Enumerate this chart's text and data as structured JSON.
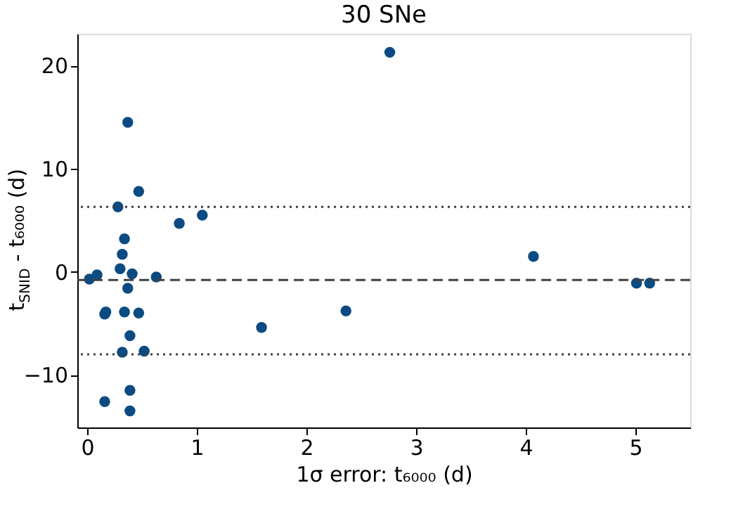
{
  "chart_data": {
    "type": "scatter",
    "title": "30 SNe",
    "xlabel": "1σ error: t₆₀₀₀ (d)",
    "ylabel": "t$_{SNID}$ - t₆₀₀₀ (d)",
    "x": [
      0.37,
      0.47,
      0.28,
      0.84,
      1.05,
      0.34,
      0.32,
      0.3,
      0.41,
      0.63,
      0.02,
      0.09,
      0.37,
      0.16,
      0.17,
      0.34,
      0.47,
      1.59,
      0.39,
      0.32,
      0.52,
      0.39,
      0.16,
      0.39,
      2.76,
      4.07,
      2.36,
      5.01,
      5.13
    ],
    "series": [
      {
        "color": "#0b4b82",
        "values": [
          14.5,
          7.8,
          6.3,
          4.7,
          5.5,
          3.2,
          1.7,
          0.3,
          -0.2,
          -0.5,
          -0.7,
          -0.3,
          -1.6,
          -4.1,
          -3.9,
          -3.9,
          -4.0,
          -5.4,
          -6.2,
          -7.8,
          -7.7,
          -11.5,
          -12.6,
          -13.5,
          21.3,
          1.5,
          -3.8,
          -1.1,
          -1.1
        ]
      }
    ],
    "xlim": [
      -0.09,
      5.5
    ],
    "ylim": [
      -15.1,
      23.1
    ],
    "xticks": [
      0,
      1,
      2,
      3,
      4,
      5
    ],
    "yticks": [
      -10,
      0,
      10,
      20
    ],
    "ref_lines": [
      {
        "axis": "y",
        "value": -0.8,
        "color": "#404040",
        "line_style": "dashed"
      },
      {
        "axis": "y",
        "value": 6.3,
        "color": "#404040",
        "line_style": "dotted"
      },
      {
        "axis": "y",
        "value": -8.0,
        "color": "#404040",
        "line_style": "dotted"
      }
    ],
    "marker": "circle",
    "grid": false,
    "legend": false
  }
}
